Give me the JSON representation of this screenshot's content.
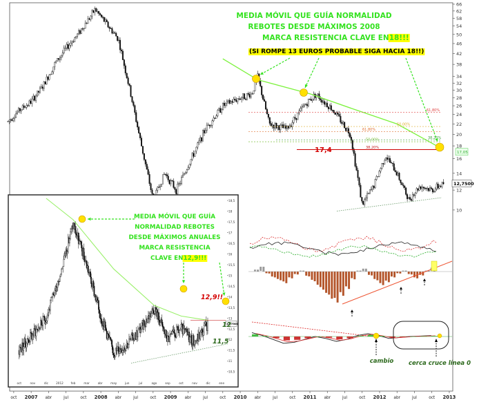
{
  "chart_data": [
    {
      "type": "candlestick",
      "y_scale": "log",
      "ylim": [
        9.5,
        66
      ],
      "y_ticks": [
        10,
        12,
        14,
        16,
        18,
        20,
        22,
        24,
        26,
        28,
        30,
        32,
        34,
        38,
        42,
        46,
        50,
        54,
        58,
        62,
        66
      ],
      "x_ticks": [
        "oct",
        "2007",
        "abr",
        "jul",
        "oct",
        "2008",
        "abr",
        "jul",
        "oct",
        "2009",
        "abr",
        "jul",
        "oct",
        "2010",
        "abr",
        "jul",
        "oct",
        "2011",
        "abr",
        "jul",
        "oct",
        "2012",
        "abr",
        "jul",
        "oct",
        "2013"
      ],
      "price_path": [
        {
          "x": "2006-09",
          "y": 22.5
        },
        {
          "x": "2006-11",
          "y": 25
        },
        {
          "x": "2007-01",
          "y": 27
        },
        {
          "x": "2007-03",
          "y": 31
        },
        {
          "x": "2007-05",
          "y": 38
        },
        {
          "x": "2007-07",
          "y": 44
        },
        {
          "x": "2007-09",
          "y": 50
        },
        {
          "x": "2007-11",
          "y": 58
        },
        {
          "x": "2007-12",
          "y": 63
        },
        {
          "x": "2008-02",
          "y": 55
        },
        {
          "x": "2008-04",
          "y": 48
        },
        {
          "x": "2008-06",
          "y": 30
        },
        {
          "x": "2008-08",
          "y": 18
        },
        {
          "x": "2008-10",
          "y": 11
        },
        {
          "x": "2008-12",
          "y": 14
        },
        {
          "x": "2009-02",
          "y": 12
        },
        {
          "x": "2009-04",
          "y": 15
        },
        {
          "x": "2009-07",
          "y": 21
        },
        {
          "x": "2009-10",
          "y": 26
        },
        {
          "x": "2010-01",
          "y": 28
        },
        {
          "x": "2010-03",
          "y": 29
        },
        {
          "x": "2010-04",
          "y": 34
        },
        {
          "x": "2010-06",
          "y": 22
        },
        {
          "x": "2010-09",
          "y": 21
        },
        {
          "x": "2010-12",
          "y": 26
        },
        {
          "x": "2011-02",
          "y": 29
        },
        {
          "x": "2011-05",
          "y": 25
        },
        {
          "x": "2011-08",
          "y": 20
        },
        {
          "x": "2011-10",
          "y": 10.5
        },
        {
          "x": "2011-12",
          "y": 12.5
        },
        {
          "x": "2012-02",
          "y": 16.5
        },
        {
          "x": "2012-04",
          "y": 14
        },
        {
          "x": "2012-06",
          "y": 11
        },
        {
          "x": "2012-08",
          "y": 12.5
        },
        {
          "x": "2012-10",
          "y": 12
        },
        {
          "x": "2012-12",
          "y": 12.75
        }
      ],
      "moving_average": [
        {
          "x": "2009-10",
          "y": 40
        },
        {
          "x": "2010-04",
          "y": 33
        },
        {
          "x": "2011-01",
          "y": 29
        },
        {
          "x": "2011-09",
          "y": 25
        },
        {
          "x": "2012-04",
          "y": 22
        },
        {
          "x": "2012-09",
          "y": 19
        },
        {
          "x": "2012-12",
          "y": 17.4
        }
      ],
      "fibonacci_levels": [
        {
          "label": "61,80%",
          "y": 24.5
        },
        {
          "label": "61,80%",
          "y": 20.5
        },
        {
          "label": "50,00%",
          "y": 21.5
        },
        {
          "label": "50,00%",
          "y": 18.7
        },
        {
          "label": "38,20%",
          "y": 19
        },
        {
          "label": "38,20%",
          "y": 17.4
        }
      ],
      "last_price_label": "12,7500",
      "ma_value_label": "17,05",
      "annotations": {
        "resistance": "17,4",
        "title_lines": [
          "MEDIA MÓVIL QUE GUÍA NORMALIDAD",
          "REBOTES DESDE MÁXIMOS 2008"
        ],
        "line3_prefix": "MARCA RESISTENCIA CLAVE EN ",
        "line3_highlight": "18!!!",
        "line4": "(SI ROMPE 13 EUROS PROBABLE SIGA HACIA 18!!)",
        "cambio": "cambio",
        "cerca": "cerca cruce línea 0"
      }
    },
    {
      "type": "candlestick",
      "ylim": [
        10.4,
        18.6
      ],
      "y_ticks": [
        10.5,
        11,
        11.5,
        12,
        12.5,
        13,
        13.5,
        14,
        14.5,
        15,
        15.5,
        16,
        16.5,
        17,
        17.5,
        18,
        18.5
      ],
      "y_tick_labels": [
        "10,5",
        "11",
        "11,5",
        "12",
        "12,5",
        "13",
        "13,5",
        "14",
        "14,5",
        "15",
        "15,5",
        "16",
        "16,5",
        "17",
        "17,5",
        "18",
        "18,5"
      ],
      "x_ticks": [
        "oct",
        "nov",
        "dic",
        "2012",
        "feb",
        "mar",
        "abr",
        "may",
        "jun",
        "jul",
        "ago",
        "sep",
        "oct",
        "nov",
        "dic",
        "ene"
      ],
      "price_path": [
        {
          "x": "2011-10",
          "y": 11.5
        },
        {
          "x": "2011-12",
          "y": 13
        },
        {
          "x": "2012-01",
          "y": 15
        },
        {
          "x": "2012-02",
          "y": 17.4
        },
        {
          "x": "2012-03",
          "y": 15.5
        },
        {
          "x": "2012-04",
          "y": 13.2
        },
        {
          "x": "2012-05",
          "y": 11.4
        },
        {
          "x": "2012-06",
          "y": 11.8
        },
        {
          "x": "2012-07",
          "y": 12.5
        },
        {
          "x": "2012-08",
          "y": 13.5
        },
        {
          "x": "2012-09",
          "y": 12
        },
        {
          "x": "2012-10",
          "y": 12.5
        },
        {
          "x": "2012-11",
          "y": 11.9
        },
        {
          "x": "2012-12",
          "y": 12.75
        }
      ],
      "moving_average": [
        {
          "x": "2011-12",
          "y": 18.6
        },
        {
          "x": "2012-02",
          "y": 17.6
        },
        {
          "x": "2012-05",
          "y": 15.3
        },
        {
          "x": "2012-08",
          "y": 13.6
        },
        {
          "x": "2012-10",
          "y": 13.1
        },
        {
          "x": "2012-12",
          "y": 12.9
        }
      ],
      "last_price_label": "12,7500",
      "annotations": {
        "title_lines": [
          "MEDIA MÓVIL QUE GUÍA",
          "NORMALIDAD REBOTES",
          "DESDE MÁXIMOS ANUALES",
          "MARCA RESISTENCIA"
        ],
        "line5_prefix": "CLAVE EN ",
        "line5_highlight": "12,9!!!",
        "resistance": "12,9!!",
        "support_upper": "12",
        "support_lower": "11,5"
      }
    },
    {
      "type": "area",
      "name": "oscillator-histogram",
      "values": [
        0.2,
        0.5,
        -0.2,
        -0.6,
        -0.9,
        -1.2,
        -0.7,
        -0.3,
        0.1,
        -0.5,
        -1,
        -1.6,
        -2.2,
        -2.8,
        -3.2,
        -2.5,
        -1.8,
        -0.8,
        0.1,
        0.3,
        -0.4,
        -0.9,
        -1.4,
        -1.1,
        -0.6,
        -0.2,
        0.1,
        -0.3,
        -0.7,
        -0.4,
        0.1,
        0.4
      ]
    },
    {
      "type": "line",
      "name": "macd",
      "values": [
        0.4,
        0.1,
        -0.3,
        -0.7,
        -0.6,
        -0.3,
        0,
        -0.2,
        -0.5,
        -0.3,
        0.1,
        0.3,
        0.1,
        -0.2,
        -0.1,
        0,
        0.05,
        0.1
      ]
    }
  ]
}
